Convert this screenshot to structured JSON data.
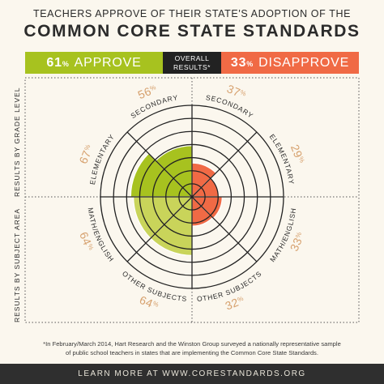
{
  "header": {
    "line1": "TEACHERS APPROVE OF THEIR STATE'S ADOPTION OF THE",
    "line2": "COMMON CORE STATE STANDARDS"
  },
  "overall": {
    "approve_pct": "61",
    "approve_label": "APPROVE",
    "disapprove_pct": "33",
    "disapprove_label": "DISAPPROVE",
    "center_line1": "OVERALL",
    "center_line2": "RESULTS*",
    "pct_sign": "%"
  },
  "side_labels": {
    "grade": "RESULTS BY GRADE LEVEL",
    "subject": "RESULTS BY SUBJECT AREA"
  },
  "chart_data": {
    "type": "polar-area",
    "scale_max": 100,
    "rings": 7,
    "colors": {
      "approve": "#a7c21f",
      "approve_subject": "#c9d45a",
      "disapprove": "#f06a45",
      "text_pct": "#d6a06d"
    },
    "segments": [
      {
        "group": "Results by grade level",
        "category": "SECONDARY",
        "approve": 56,
        "disapprove": 37
      },
      {
        "group": "Results by grade level",
        "category": "ELEMENTARY",
        "approve": 67,
        "disapprove": 29
      },
      {
        "group": "Results by subject area",
        "category": "MATH/ENGLISH",
        "approve": 64,
        "disapprove": 33
      },
      {
        "group": "Results by subject area",
        "category": "OTHER SUBJECTS",
        "approve": 64,
        "disapprove": 32
      }
    ]
  },
  "footnote": {
    "line1": "*In February/March 2014, Hart Research and the Winston Group surveyed a nationally representative sample",
    "line2": "of public school teachers in states that are implementing the Common Core State Standards."
  },
  "footer": {
    "text": "LEARN MORE AT WWW.CORESTANDARDS.ORG"
  }
}
